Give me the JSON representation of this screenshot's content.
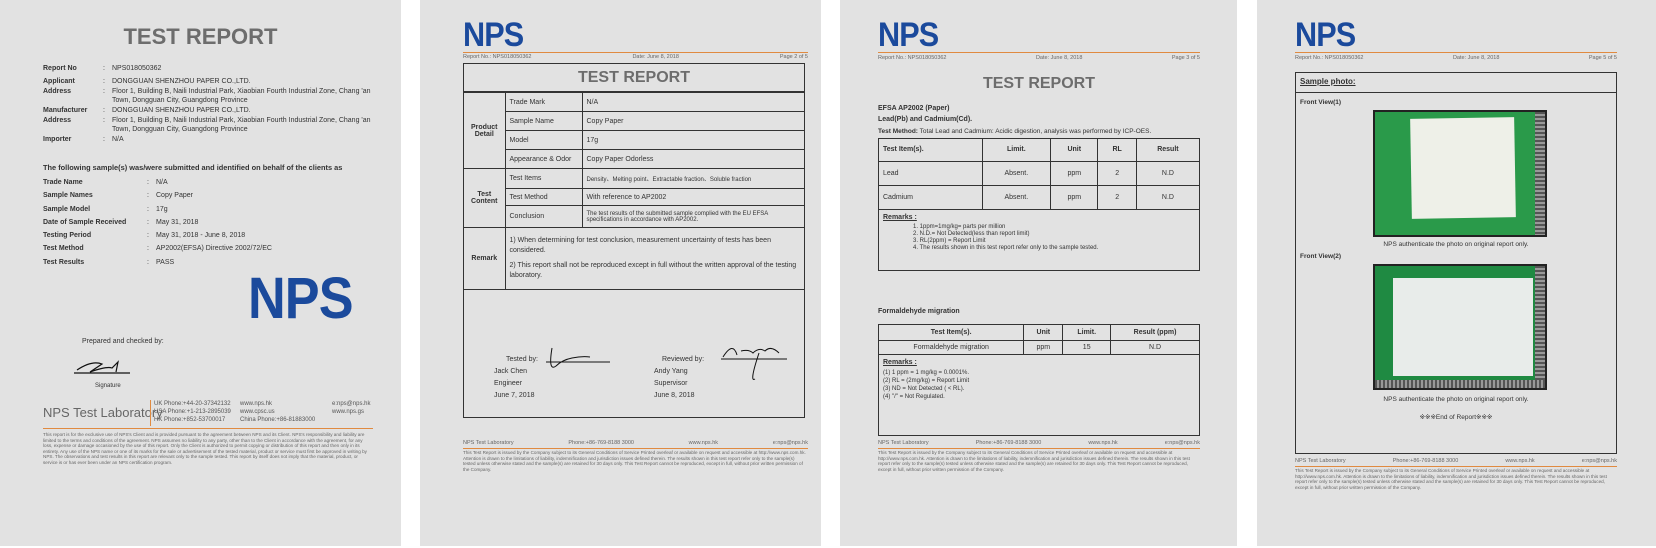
{
  "brand": {
    "logo": "NPS",
    "accent": "#1b4a9c",
    "line_color": "#e08a40"
  },
  "page1": {
    "title": "TEST REPORT",
    "rows": [
      {
        "label": "Report No",
        "value": "NPS018050362"
      },
      {
        "label": "Applicant",
        "value": "DONGGUAN SHENZHOU PAPER CO.,LTD."
      },
      {
        "label": "Address",
        "value": "Floor 1, Building B, Naili Industrial Park, Xiaobian Fourth Industrial Zone, Chang 'an Town, Dongguan City, Guangdong Province"
      },
      {
        "label": "Manufacturer",
        "value": "DONGGUAN SHENZHOU PAPER CO.,LTD."
      },
      {
        "label": "Address",
        "value": "Floor 1, Building B, Naili Industrial Park, Xiaobian Fourth Industrial Zone, Chang 'an Town, Dongguan City, Guangdong Province"
      },
      {
        "label": "Importer",
        "value": "N/A"
      }
    ],
    "samples_heading": "The following sample(s) was/were submitted and identified on behalf of the clients as",
    "samples": [
      {
        "label": "Trade Name",
        "value": "N/A"
      },
      {
        "label": "Sample Names",
        "value": "Copy Paper"
      },
      {
        "label": "Sample Model",
        "value": "17g"
      },
      {
        "label": "Date of Sample Received",
        "value": "May 31, 2018"
      },
      {
        "label": "Testing Period",
        "value": "May 31, 2018 - June 8, 2018"
      },
      {
        "label": "Test Method",
        "value": "AP2002(EFSA)  Directive 2002/72/EC"
      },
      {
        "label": "Test Results",
        "value": "PASS"
      }
    ],
    "prepared": "Prepared and checked by:",
    "signature_label": "Signature",
    "lab_name": "NPS Test Laboratory",
    "contacts": [
      "UK Phone:+44-20-37342132",
      "USA Phone:+1-213-2895039",
      "HK Phone:+852-53700017",
      "www.nps.hk",
      "www.cpsc.us",
      "China Phone:+86-81883000",
      "e:nps@nps.hk",
      "www.nps.gs"
    ],
    "disclaimer": "This report is for the exclusive use of NPS's Client and is provided pursuant to the agreement between NPS and its Client. NPS's responsibility and liability are limited to the terms and conditions of the agreement. NPS assumes no liability to any party, other than to the Client in accordance with the agreement, for any loss, expense or damage occasioned by the use of this report. Only the Client is authorized to permit copying or distribution of this report and then only in its entirety. Any use of the NPS name or one of its marks for the sale or advertisement of the tested material, product or service must first be approved in writing by NPS. The observations and test results in this report are relevant only to the sample tested. This report by itself does not imply that the material, product, or service is or has ever been under an NPS certification program."
  },
  "page2": {
    "report_no": "Report No.: NPS018050362",
    "date": "Date: June 8, 2018",
    "page": "Page 2 of 5",
    "title": "TEST REPORT",
    "product_detail": "Product Detail",
    "product_rows": [
      [
        "Trade Mark",
        "N/A"
      ],
      [
        "Sample Name",
        "Copy Paper"
      ],
      [
        "Model",
        "17g"
      ],
      [
        "Appearance & Odor",
        "Copy Paper Odorless"
      ]
    ],
    "test_content": "Test Content",
    "test_rows": [
      [
        "Test Items",
        "Density、Melting point、Extractable fraction、Soluble fraction"
      ],
      [
        "Test Method",
        "With reference to AP2002"
      ],
      [
        "Conclusion",
        "The test results of the submitted sample complied with the EU EFSA specifications in accordance with AP2002."
      ]
    ],
    "remark": "Remark",
    "remarks": [
      "1)  When determining for test conclusion, measurement uncertainty of tests has been considered.",
      "2)  This report shall not be reproduced except in full without the written approval of the testing laboratory."
    ],
    "tested_by": "Tested by:",
    "tester": "Jack  Chen",
    "tester_role": "Engineer",
    "tested_date": "June 7, 2018",
    "reviewed_by": "Reviewed by:",
    "reviewer": "Andy Yang",
    "reviewer_role": "Supervisor",
    "reviewed_date": "June 8, 2018"
  },
  "footer": {
    "lab": "NPS Test Laboratory",
    "phone": "Phone:+86-769-8188 3000",
    "web": "www.nps.hk",
    "email": "e:nps@nps.hk",
    "text": "This Test Report is issued by the Company subject to its General Conditions of Service Printed overleaf or available on request and accessible at http://www.nps.com.hk. Attention is drawn to the limitations of liability, indemnification and jurisdiction issues defined therein. The results shown in this test report refer only to the sample(s) tested unless otherwise stated and the sample(s) are retained for 30 days only. This Test Report cannot be reproduced, except in full, without prior written permission of the Company."
  },
  "page3": {
    "report_no": "Report No.: NPS018050362",
    "date": "Date: June 8, 2018",
    "page": "Page 3 of 5",
    "title": "TEST REPORT",
    "std": "EFSA AP2002 (Paper)",
    "subject": "Lead(Pb) and Cadmium(Cd).",
    "method_label": "Test Method:",
    "method": "Total Lead and Cadmium: Acidic digestion, analysis was performed by ICP-OES.",
    "headers": [
      "Test Item(s).",
      "Limit.",
      "Unit",
      "RL",
      "Result"
    ],
    "rows": [
      [
        "Lead",
        "Absent.",
        "ppm",
        "2",
        "N.D"
      ],
      [
        "Cadmium",
        "Absent.",
        "ppm",
        "2",
        "N.D"
      ]
    ],
    "remarks_title": "Remarks :",
    "remarks": [
      "1. 1ppm=1mg/kg= parts per million",
      "2. N.D.= Not Detected(less than report limit)",
      "3. RL(2ppm) = Report Limit",
      "4. The results shown in this test report refer only to the sample tested."
    ],
    "form_title": "Formaldehyde migration",
    "form_headers": [
      "Test Item(s).",
      "Unit",
      "Limit.",
      "Result (ppm)"
    ],
    "form_row": [
      "Formaldehyde migration",
      "ppm",
      "15",
      "N.D"
    ],
    "form_remarks": [
      "(1) 1 ppm = 1 mg/kg = 0.0001%.",
      "(2) RL = (2mg/kg) = Report Limit",
      "(3) ND = Not Detected ( < RL).",
      "(4) \"/\" = Not Regulated."
    ]
  },
  "page4": {
    "report_no": "Report No.: NPS018050362",
    "date": "Date: June 8, 2018",
    "page": "Page 5 of 5",
    "sample_photo": "Sample photo:",
    "view1": "Front View(1)",
    "view2": "Front View(2)",
    "caption": "NPS authenticate the photo on original report only.",
    "end": "※※※End of Report※※※"
  }
}
